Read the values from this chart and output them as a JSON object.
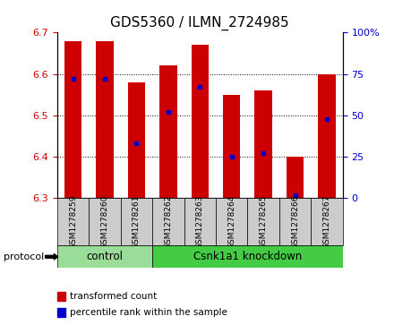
{
  "title": "GDS5360 / ILMN_2724985",
  "samples": [
    "GSM1278259",
    "GSM1278260",
    "GSM1278261",
    "GSM1278262",
    "GSM1278263",
    "GSM1278264",
    "GSM1278265",
    "GSM1278266",
    "GSM1278267"
  ],
  "transformed_counts": [
    6.68,
    6.68,
    6.58,
    6.62,
    6.67,
    6.55,
    6.56,
    6.4,
    6.6
  ],
  "percentile_ranks": [
    72,
    72,
    33,
    52,
    67,
    25,
    27,
    2,
    48
  ],
  "ylim": [
    6.3,
    6.7
  ],
  "y2lim": [
    0,
    100
  ],
  "yticks": [
    6.3,
    6.4,
    6.5,
    6.6,
    6.7
  ],
  "y2ticks": [
    0,
    25,
    50,
    75,
    100
  ],
  "bar_color": "#cc0000",
  "dot_color": "#0000cc",
  "bar_width": 0.55,
  "control_samples": 3,
  "control_label": "control",
  "knockdown_label": "Csnk1a1 knockdown",
  "protocol_label": "protocol",
  "legend_bar": "transformed count",
  "legend_dot": "percentile rank within the sample",
  "tick_label_color_left": "#cc0000",
  "tick_label_color_right": "#0000cc",
  "sample_box_color": "#cccccc",
  "control_color": "#99dd99",
  "knockdown_color": "#44cc44",
  "title_fontsize": 11
}
